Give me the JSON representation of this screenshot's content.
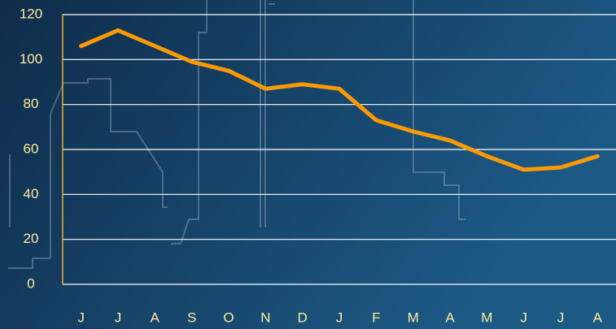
{
  "chart_data": {
    "type": "line",
    "categories": [
      "J",
      "J",
      "A",
      "S",
      "O",
      "N",
      "D",
      "J",
      "F",
      "M",
      "A",
      "M",
      "J",
      "J",
      "A"
    ],
    "series": [
      {
        "name": null,
        "color": "#ff9900",
        "values": [
          106,
          113,
          106,
          99,
          95,
          87,
          89,
          87,
          73,
          68,
          64,
          57,
          51,
          52,
          57
        ]
      }
    ],
    "ylim": [
      0,
      120
    ],
    "yticks": [
      0,
      20,
      40,
      60,
      80,
      100,
      120
    ],
    "grid": true
  }
}
